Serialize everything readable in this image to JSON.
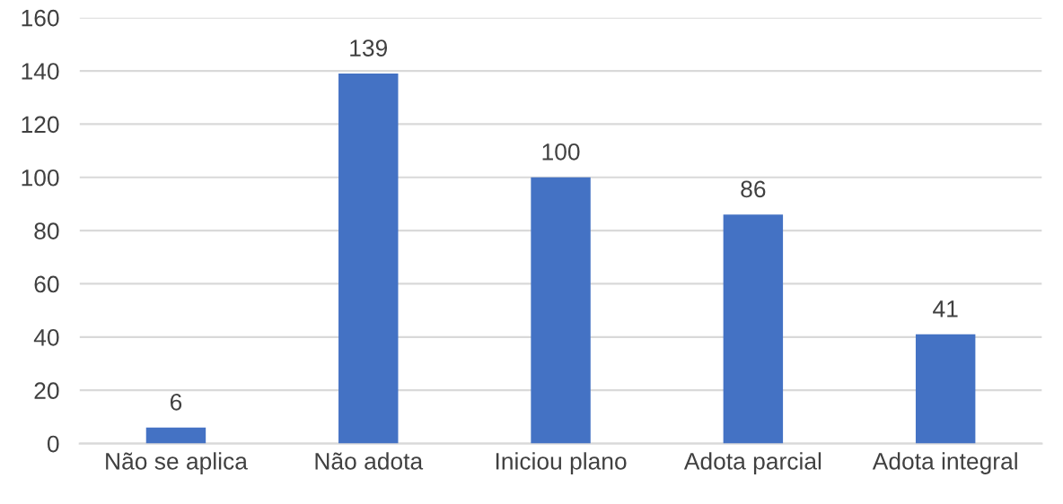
{
  "chart_data": {
    "type": "bar",
    "categories": [
      "Não se aplica",
      "Não adota",
      "Iniciou plano",
      "Adota parcial",
      "Adota integral"
    ],
    "values": [
      6,
      139,
      100,
      86,
      41
    ],
    "color": "#4472c4",
    "ylim": [
      0,
      160
    ],
    "yticks": [
      0,
      20,
      40,
      60,
      80,
      100,
      120,
      140,
      160
    ],
    "grid": "y",
    "data_labels": true
  }
}
